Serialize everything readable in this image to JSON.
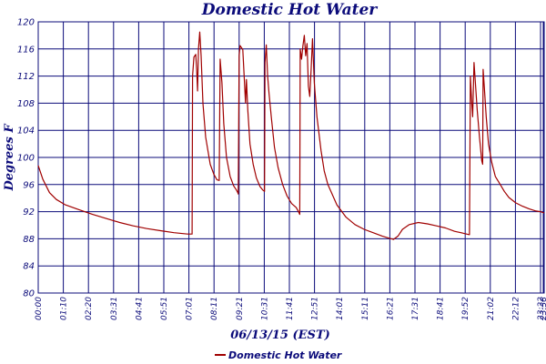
{
  "chart_data": {
    "type": "line",
    "title": "Domestic Hot Water",
    "xlabel": "06/13/15 (EST)",
    "ylabel": "Degrees F",
    "ylim": [
      80,
      120
    ],
    "yticks": [
      "80",
      "84",
      "88",
      "92",
      "96",
      "100",
      "104",
      "108",
      "112",
      "116",
      "120"
    ],
    "xticks": [
      "00:00",
      "01:10",
      "02:20",
      "03:31",
      "04:41",
      "05:51",
      "07:01",
      "08:11",
      "09:21",
      "10:31",
      "11:41",
      "12:51",
      "14:01",
      "15:11",
      "16:21",
      "17:31",
      "18:41",
      "19:52",
      "21:02",
      "22:12",
      "23:22",
      "23:38"
    ],
    "grid": true,
    "legend": "bottom-left",
    "colors": {
      "series": "#a00000",
      "grid": "#0b0b7a",
      "text": "#0b0b7a"
    },
    "series": [
      {
        "name": "Domestic Hot Water",
        "points": [
          [
            0,
            98.8
          ],
          [
            10,
            96.8
          ],
          [
            25,
            94.8
          ],
          [
            40,
            93.8
          ],
          [
            60,
            93.0
          ],
          [
            90,
            92.3
          ],
          [
            120,
            91.6
          ],
          [
            150,
            91.0
          ],
          [
            180,
            90.4
          ],
          [
            210,
            89.9
          ],
          [
            240,
            89.5
          ],
          [
            270,
            89.2
          ],
          [
            300,
            88.9
          ],
          [
            330,
            88.7
          ],
          [
            340,
            88.7
          ],
          [
            341,
            112
          ],
          [
            344,
            114.8
          ],
          [
            348,
            115.2
          ],
          [
            350,
            113
          ],
          [
            352,
            109.8
          ],
          [
            354,
            116
          ],
          [
            357,
            118.5
          ],
          [
            360,
            115
          ],
          [
            364,
            108
          ],
          [
            370,
            103
          ],
          [
            380,
            99
          ],
          [
            388,
            97.5
          ],
          [
            395,
            96.7
          ],
          [
            400,
            96.6
          ],
          [
            402,
            114.5
          ],
          [
            406,
            111
          ],
          [
            410,
            105
          ],
          [
            416,
            100
          ],
          [
            424,
            97.2
          ],
          [
            432,
            95.8
          ],
          [
            438,
            95.2
          ],
          [
            441,
            94.8
          ],
          [
            442,
            94.6
          ],
          [
            444,
            115
          ],
          [
            446,
            116.5
          ],
          [
            449,
            116.2
          ],
          [
            452,
            115.9
          ],
          [
            455,
            112
          ],
          [
            458,
            108
          ],
          [
            460,
            111.5
          ],
          [
            463,
            107
          ],
          [
            468,
            102
          ],
          [
            475,
            99
          ],
          [
            482,
            97
          ],
          [
            490,
            95.7
          ],
          [
            496,
            95.2
          ],
          [
            500,
            95.0
          ],
          [
            501,
            114
          ],
          [
            504,
            116.6
          ],
          [
            507,
            112
          ],
          [
            510,
            109.5
          ],
          [
            515,
            106
          ],
          [
            522,
            101.5
          ],
          [
            530,
            98.5
          ],
          [
            540,
            96
          ],
          [
            550,
            94.3
          ],
          [
            560,
            93.2
          ],
          [
            570,
            92.6
          ],
          [
            575,
            92.0
          ],
          [
            578,
            91.6
          ],
          [
            579,
            116
          ],
          [
            582,
            114.5
          ],
          [
            585,
            116.5
          ],
          [
            588,
            118
          ],
          [
            591,
            115
          ],
          [
            594,
            116.8
          ],
          [
            597,
            110.5
          ],
          [
            600,
            109
          ],
          [
            603,
            113
          ],
          [
            606,
            117.5
          ],
          [
            610,
            111
          ],
          [
            616,
            106
          ],
          [
            625,
            101
          ],
          [
            632,
            98
          ],
          [
            640,
            96.0
          ],
          [
            660,
            93.0
          ],
          [
            680,
            91.2
          ],
          [
            700,
            90.1
          ],
          [
            720,
            89.4
          ],
          [
            740,
            88.9
          ],
          [
            760,
            88.4
          ],
          [
            775,
            88.1
          ],
          [
            785,
            87.9
          ],
          [
            795,
            88.4
          ],
          [
            805,
            89.4
          ],
          [
            820,
            90.1
          ],
          [
            840,
            90.4
          ],
          [
            860,
            90.2
          ],
          [
            880,
            89.9
          ],
          [
            900,
            89.6
          ],
          [
            920,
            89.1
          ],
          [
            940,
            88.8
          ],
          [
            953,
            88.6
          ],
          [
            955,
            112
          ],
          [
            958,
            108
          ],
          [
            960,
            106
          ],
          [
            963,
            114
          ],
          [
            966,
            111
          ],
          [
            970,
            107
          ],
          [
            975,
            103
          ],
          [
            980,
            99.5
          ],
          [
            982,
            99
          ],
          [
            983,
            113
          ],
          [
            986,
            110
          ],
          [
            990,
            106
          ],
          [
            995,
            102
          ],
          [
            1002,
            99.3
          ],
          [
            1010,
            97.2
          ],
          [
            1020,
            96.1
          ],
          [
            1030,
            95
          ],
          [
            1040,
            94.1
          ],
          [
            1055,
            93.3
          ],
          [
            1070,
            92.8
          ],
          [
            1085,
            92.4
          ],
          [
            1100,
            92.1
          ],
          [
            1110,
            92.0
          ],
          [
            1118,
            91.8
          ]
        ]
      }
    ]
  }
}
